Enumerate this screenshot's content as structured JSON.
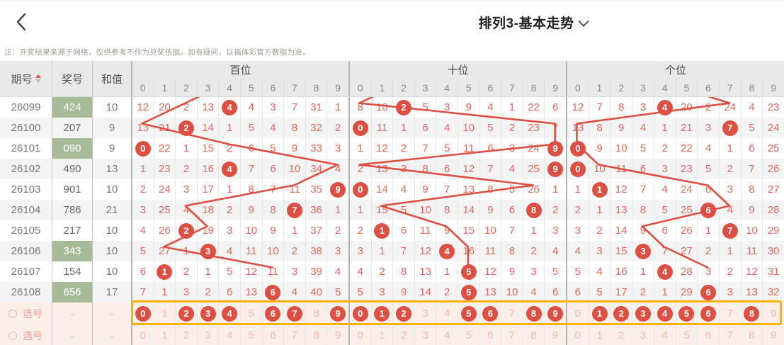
{
  "header": {
    "title": "排列3-基本走势"
  },
  "note": "注：开奖结果来源于网络，仅供参考不作为兑奖依据。如有疑问，以福体彩官方数据为准。",
  "colors": {
    "accent_red": "#dc4f42",
    "miss_text": "#e06a5c",
    "green_cell": "#a6bc98",
    "select_row_bg": "#fcefe9",
    "select_text": "#ef9f8f",
    "highlight_box": "#f6b402",
    "header_bg": "#e9e9e9"
  },
  "chart_data": {
    "type": "table",
    "title": "排列3-基本走势",
    "left_columns": [
      "期号",
      "奖号",
      "和值"
    ],
    "sections": [
      {
        "key": "bai",
        "label": "百位",
        "digits": [
          0,
          1,
          2,
          3,
          4,
          5,
          6,
          7,
          8,
          9
        ]
      },
      {
        "key": "shi",
        "label": "十位",
        "digits": [
          0,
          1,
          2,
          3,
          4,
          5,
          6,
          7,
          8,
          9
        ]
      },
      {
        "key": "ge",
        "label": "个位",
        "digits": [
          0,
          1,
          2,
          3,
          4,
          5,
          6,
          7,
          8,
          9
        ]
      }
    ],
    "incoming_line_exit_cols": {
      "bai": 9.4,
      "shi": 9.1,
      "ge": 4.4
    },
    "rows": [
      {
        "issue": "26099",
        "number": "424",
        "green": true,
        "sum": "10",
        "hit": {
          "bai": 4,
          "shi": 2,
          "ge": 4
        },
        "miss": {
          "bai": [
            12,
            20,
            2,
            13,
            4,
            4,
            3,
            7,
            31,
            1
          ],
          "shi": [
            8,
            10,
            2,
            5,
            3,
            9,
            4,
            1,
            22,
            6
          ],
          "ge": [
            12,
            7,
            8,
            3,
            4,
            20,
            2,
            24,
            4,
            23
          ]
        }
      },
      {
        "issue": "26100",
        "number": "207",
        "green": false,
        "sum": "9",
        "hit": {
          "bai": 2,
          "shi": 0,
          "ge": 7
        },
        "miss": {
          "bai": [
            13,
            21,
            2,
            14,
            1,
            5,
            4,
            8,
            32,
            2
          ],
          "shi": [
            0,
            11,
            1,
            6,
            4,
            10,
            5,
            2,
            23,
            7
          ],
          "ge": [
            13,
            8,
            9,
            4,
            1,
            21,
            3,
            7,
            5,
            24
          ]
        }
      },
      {
        "issue": "26101",
        "number": "090",
        "green": true,
        "sum": "9",
        "hit": {
          "bai": 0,
          "shi": 9,
          "ge": 0
        },
        "miss": {
          "bai": [
            0,
            22,
            1,
            15,
            2,
            6,
            5,
            9,
            33,
            3
          ],
          "shi": [
            1,
            12,
            2,
            7,
            5,
            11,
            6,
            3,
            24,
            9
          ],
          "ge": [
            0,
            9,
            10,
            5,
            2,
            22,
            4,
            1,
            6,
            25
          ]
        }
      },
      {
        "issue": "26102",
        "number": "490",
        "green": false,
        "sum": "13",
        "hit": {
          "bai": 4,
          "shi": 9,
          "ge": 0
        },
        "miss": {
          "bai": [
            1,
            23,
            2,
            16,
            4,
            7,
            6,
            10,
            34,
            4
          ],
          "shi": [
            2,
            13,
            3,
            8,
            6,
            12,
            7,
            4,
            25,
            9
          ],
          "ge": [
            0,
            10,
            11,
            6,
            3,
            23,
            5,
            2,
            7,
            26
          ]
        }
      },
      {
        "issue": "26103",
        "number": "901",
        "green": false,
        "sum": "10",
        "hit": {
          "bai": 9,
          "shi": 0,
          "ge": 1
        },
        "miss": {
          "bai": [
            2,
            24,
            3,
            17,
            1,
            8,
            7,
            11,
            35,
            9
          ],
          "shi": [
            0,
            14,
            4,
            9,
            7,
            13,
            8,
            5,
            26,
            1
          ],
          "ge": [
            1,
            1,
            12,
            7,
            4,
            24,
            6,
            3,
            8,
            27
          ]
        }
      },
      {
        "issue": "26104",
        "number": "786",
        "green": false,
        "sum": "21",
        "hit": {
          "bai": 7,
          "shi": 8,
          "ge": 6
        },
        "miss": {
          "bai": [
            3,
            25,
            4,
            18,
            2,
            9,
            8,
            7,
            36,
            1
          ],
          "shi": [
            1,
            15,
            5,
            10,
            8,
            14,
            9,
            6,
            8,
            2
          ],
          "ge": [
            2,
            1,
            13,
            8,
            5,
            25,
            6,
            4,
            9,
            28
          ]
        }
      },
      {
        "issue": "26105",
        "number": "217",
        "green": false,
        "sum": "10",
        "hit": {
          "bai": 2,
          "shi": 1,
          "ge": 7
        },
        "miss": {
          "bai": [
            4,
            26,
            2,
            19,
            3,
            10,
            9,
            1,
            37,
            2
          ],
          "shi": [
            2,
            1,
            6,
            11,
            9,
            15,
            10,
            7,
            1,
            3
          ],
          "ge": [
            3,
            2,
            14,
            9,
            6,
            26,
            1,
            7,
            10,
            29
          ]
        }
      },
      {
        "issue": "26106",
        "number": "343",
        "green": true,
        "sum": "10",
        "hit": {
          "bai": 3,
          "shi": 4,
          "ge": 3
        },
        "miss": {
          "bai": [
            5,
            27,
            1,
            3,
            4,
            11,
            10,
            2,
            38,
            3
          ],
          "shi": [
            3,
            1,
            7,
            12,
            4,
            16,
            11,
            8,
            2,
            4
          ],
          "ge": [
            4,
            3,
            15,
            3,
            7,
            27,
            2,
            1,
            11,
            30
          ]
        }
      },
      {
        "issue": "26107",
        "number": "154",
        "green": false,
        "sum": "10",
        "hit": {
          "bai": 1,
          "shi": 5,
          "ge": 4
        },
        "miss": {
          "bai": [
            6,
            1,
            2,
            1,
            5,
            12,
            11,
            3,
            39,
            4
          ],
          "shi": [
            4,
            2,
            8,
            13,
            1,
            5,
            12,
            9,
            3,
            5
          ],
          "ge": [
            5,
            4,
            16,
            1,
            4,
            28,
            3,
            2,
            12,
            31
          ]
        }
      },
      {
        "issue": "26108",
        "number": "656",
        "green": true,
        "sum": "17",
        "hit": {
          "bai": 6,
          "shi": 5,
          "ge": 6
        },
        "miss": {
          "bai": [
            7,
            1,
            3,
            2,
            6,
            13,
            6,
            4,
            40,
            5
          ],
          "shi": [
            5,
            3,
            9,
            14,
            2,
            5,
            13,
            10,
            4,
            6
          ],
          "ge": [
            6,
            5,
            17,
            2,
            1,
            29,
            6,
            3,
            13,
            32
          ]
        }
      }
    ],
    "select_rows": [
      {
        "label": "选号",
        "number": "-",
        "sum": "-",
        "highlight": true,
        "selected": {
          "bai": [
            0,
            2,
            3,
            4,
            6,
            7,
            9
          ],
          "shi": [
            0,
            1,
            2,
            5,
            6,
            8,
            9
          ],
          "ge": [
            1,
            2,
            3,
            4,
            5,
            6,
            8
          ]
        }
      },
      {
        "label": "选号",
        "number": "-",
        "sum": "-",
        "highlight": false,
        "selected": {
          "bai": [],
          "shi": [],
          "ge": []
        }
      }
    ]
  }
}
